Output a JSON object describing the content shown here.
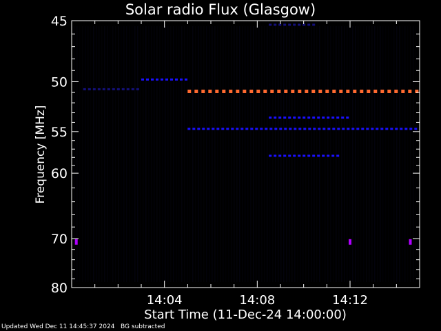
{
  "chart_data": {
    "type": "heatmap",
    "title": "Solar radio Flux (Glasgow)",
    "xlabel": "Start Time (11-Dec-24 14:00:00)",
    "ylabel": "Frequency [MHz]",
    "x_unit": "minutes after 14:00:00",
    "xlim": [
      0,
      15
    ],
    "ylim": [
      80,
      45
    ],
    "y_scale": "reciprocal",
    "x_ticks": [
      "14:04",
      "14:08",
      "14:12"
    ],
    "x_tick_values": [
      4,
      8,
      12
    ],
    "y_ticks": [
      45,
      50,
      55,
      60,
      70,
      80
    ],
    "colormap": [
      "#000000",
      "#1a00ff",
      "#ff6a30"
    ],
    "colors": {
      "background": "#000000",
      "axes": "#ffffff",
      "strong_band": "#ff6a30",
      "weak_band": "#1a10ff",
      "spike": "#b000ff"
    },
    "bands": [
      {
        "freq": 50.9,
        "start": 5.0,
        "end": 15.0,
        "intensity": "strong"
      },
      {
        "freq": 54.7,
        "start": 5.0,
        "end": 15.0,
        "intensity": "weak"
      },
      {
        "freq": 53.5,
        "start": 8.5,
        "end": 12.0,
        "intensity": "weak"
      },
      {
        "freq": 57.8,
        "start": 8.5,
        "end": 11.5,
        "intensity": "weak"
      },
      {
        "freq": 49.8,
        "start": 3.0,
        "end": 5.0,
        "intensity": "weak"
      },
      {
        "freq": 50.7,
        "start": 0.5,
        "end": 3.0,
        "intensity": "faint"
      },
      {
        "freq": 45.3,
        "start": 8.5,
        "end": 10.5,
        "intensity": "faint"
      }
    ],
    "spikes": [
      {
        "freq": 70.6,
        "time": 0.2
      },
      {
        "freq": 70.6,
        "time": 14.6
      },
      {
        "freq": 70.6,
        "time": 12.0
      }
    ]
  },
  "footer": {
    "updated": "Updated Wed Dec 11 14:45:37 2024",
    "note": "BG subtracted"
  }
}
